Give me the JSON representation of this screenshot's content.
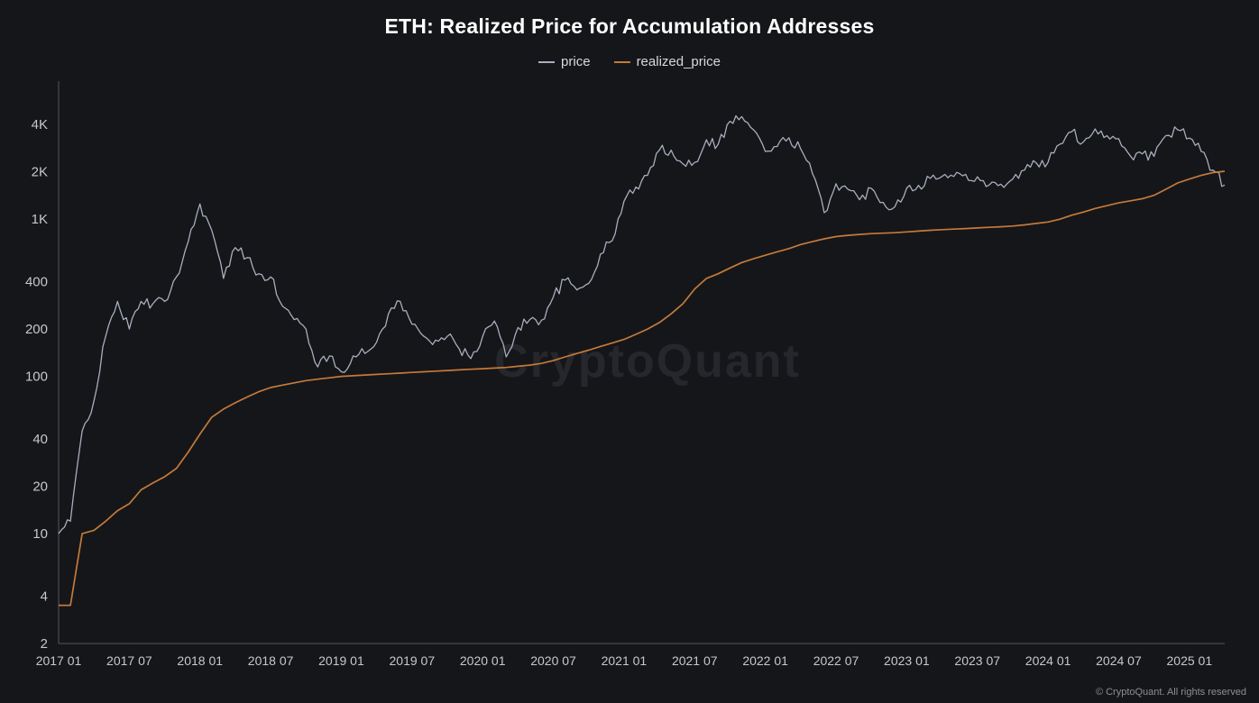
{
  "title": "ETH: Realized Price for Accumulation Addresses",
  "footer": "© CryptoQuant. All rights reserved",
  "watermark": "CryptoQuant",
  "colors": {
    "background": "#151619",
    "price": "#a9aebf",
    "realized_price": "#c47a3a",
    "axis": "#55565c",
    "tick_label": "#c7c8cc",
    "watermark": "#26272c"
  },
  "chart_data": {
    "type": "line",
    "title": "ETH: Realized Price for Accumulation Addresses",
    "xlabel": "",
    "ylabel": "",
    "y_scale": "log",
    "ylim": [
      2,
      6800
    ],
    "grid": false,
    "legend_position": "top-center",
    "x_start": "2017-01",
    "x_end": "2025-04",
    "x_interval": "monthly",
    "x_tick_labels": [
      "2017 01",
      "2017 07",
      "2018 01",
      "2018 07",
      "2019 01",
      "2019 07",
      "2020 01",
      "2020 07",
      "2021 01",
      "2021 07",
      "2022 01",
      "2022 07",
      "2023 01",
      "2023 07",
      "2024 01",
      "2024 07",
      "2025 01"
    ],
    "x_tick_month_index": [
      0,
      6,
      12,
      18,
      24,
      30,
      36,
      42,
      48,
      54,
      60,
      66,
      72,
      78,
      84,
      90,
      96
    ],
    "y_ticks": [
      {
        "value": 2,
        "label": "2"
      },
      {
        "value": 4,
        "label": "4"
      },
      {
        "value": 10,
        "label": "10"
      },
      {
        "value": 20,
        "label": "20"
      },
      {
        "value": 40,
        "label": "40"
      },
      {
        "value": 100,
        "label": "100"
      },
      {
        "value": 200,
        "label": "200"
      },
      {
        "value": 400,
        "label": "400"
      },
      {
        "value": 1000,
        "label": "1K"
      },
      {
        "value": 2000,
        "label": "2K"
      },
      {
        "value": 4000,
        "label": "4K"
      }
    ],
    "series": [
      {
        "name": "price",
        "color": "#a9aebf",
        "style": "jagged",
        "values": [
          10,
          12,
          45,
          70,
          180,
          300,
          200,
          300,
          290,
          300,
          430,
          720,
          1250,
          850,
          420,
          660,
          570,
          450,
          430,
          280,
          230,
          200,
          115,
          135,
          107,
          135,
          140,
          165,
          250,
          300,
          215,
          180,
          170,
          180,
          150,
          130,
          180,
          225,
          133,
          205,
          230,
          228,
          320,
          410,
          355,
          390,
          600,
          730,
          1300,
          1600,
          1900,
          2750,
          2750,
          2250,
          2300,
          3200,
          3000,
          4200,
          4500,
          3700,
          2700,
          2900,
          3300,
          2800,
          1950,
          1100,
          1680,
          1550,
          1330,
          1570,
          1280,
          1200,
          1580,
          1640,
          1820,
          1870,
          1870,
          1930,
          1860,
          1650,
          1670,
          1800,
          2050,
          2280,
          2300,
          3000,
          3600,
          3100,
          3750,
          3400,
          3250,
          2520,
          2600,
          2510,
          3400,
          3700,
          3280,
          2700,
          2050,
          1650
        ]
      },
      {
        "name": "realized_price",
        "color": "#c47a3a",
        "style": "smooth",
        "values": [
          3.5,
          3.5,
          10,
          10.5,
          12,
          14,
          15.5,
          19,
          21,
          23,
          26,
          33,
          43,
          55,
          62,
          68,
          74,
          80,
          85,
          88,
          91,
          94,
          96,
          98,
          100,
          101,
          102,
          103,
          104,
          105,
          106,
          107,
          108,
          109,
          110,
          111,
          112,
          113,
          114,
          116,
          118,
          121,
          126,
          133,
          140,
          147,
          155,
          163,
          172,
          185,
          200,
          220,
          250,
          290,
          360,
          420,
          450,
          490,
          530,
          560,
          590,
          620,
          650,
          690,
          720,
          750,
          775,
          790,
          800,
          810,
          815,
          820,
          830,
          840,
          850,
          858,
          865,
          872,
          880,
          888,
          895,
          905,
          920,
          940,
          960,
          1000,
          1060,
          1110,
          1170,
          1220,
          1270,
          1310,
          1350,
          1420,
          1550,
          1700,
          1800,
          1900,
          1980,
          2020
        ]
      }
    ]
  }
}
